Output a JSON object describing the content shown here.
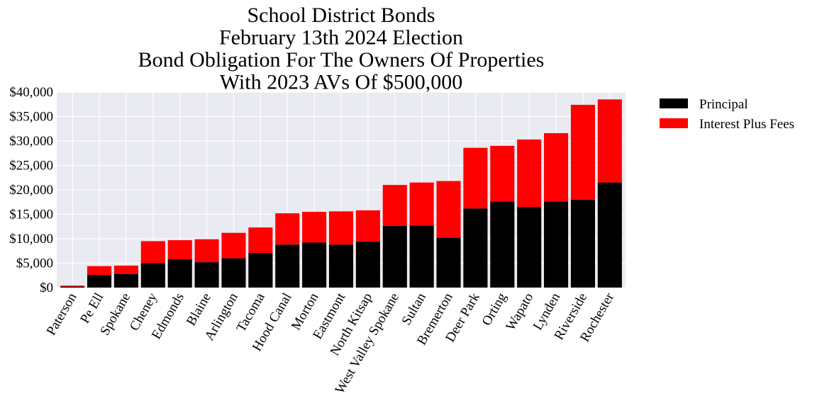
{
  "chart_data": {
    "type": "bar",
    "stacked": true,
    "title": [
      "School District Bonds",
      "February 13th 2024 Election",
      "Bond Obligation For The Owners Of Properties",
      "With 2023 AVs Of $500,000"
    ],
    "categories": [
      "Paterson",
      "Pe Ell",
      "Spokane",
      "Cheney",
      "Edmonds",
      "Blaine",
      "Arlington",
      "Tacoma",
      "Hood Canal",
      "Morton",
      "Eastmont",
      "North Kitsap",
      "West Valley Spokane",
      "Sultan",
      "Bremerton",
      "Deer Park",
      "Orting",
      "Wapato",
      "Lynden",
      "Riverside",
      "Rochester"
    ],
    "series": [
      {
        "name": "Principal",
        "color": "#000000",
        "values": [
          200,
          2600,
          2800,
          5000,
          5800,
          5200,
          6000,
          7100,
          8800,
          9200,
          8800,
          9400,
          12600,
          12700,
          10200,
          16200,
          17600,
          16500,
          17600,
          18000,
          21500
        ]
      },
      {
        "name": "Interest Plus Fees",
        "color": "#ff0000",
        "values": [
          200,
          1800,
          1700,
          4500,
          3900,
          4700,
          5200,
          5200,
          6400,
          6300,
          6800,
          6400,
          8400,
          8800,
          11600,
          12400,
          11400,
          13800,
          14000,
          19400,
          17000
        ]
      }
    ],
    "yticks": [
      "$0",
      "$5,000",
      "$10,000",
      "$15,000",
      "$20,000",
      "$25,000",
      "$30,000",
      "$35,000",
      "$40,000"
    ],
    "ylim": [
      0,
      40000
    ],
    "grid": true,
    "legend_position": "outside-right",
    "background": "#eaeaf2"
  }
}
